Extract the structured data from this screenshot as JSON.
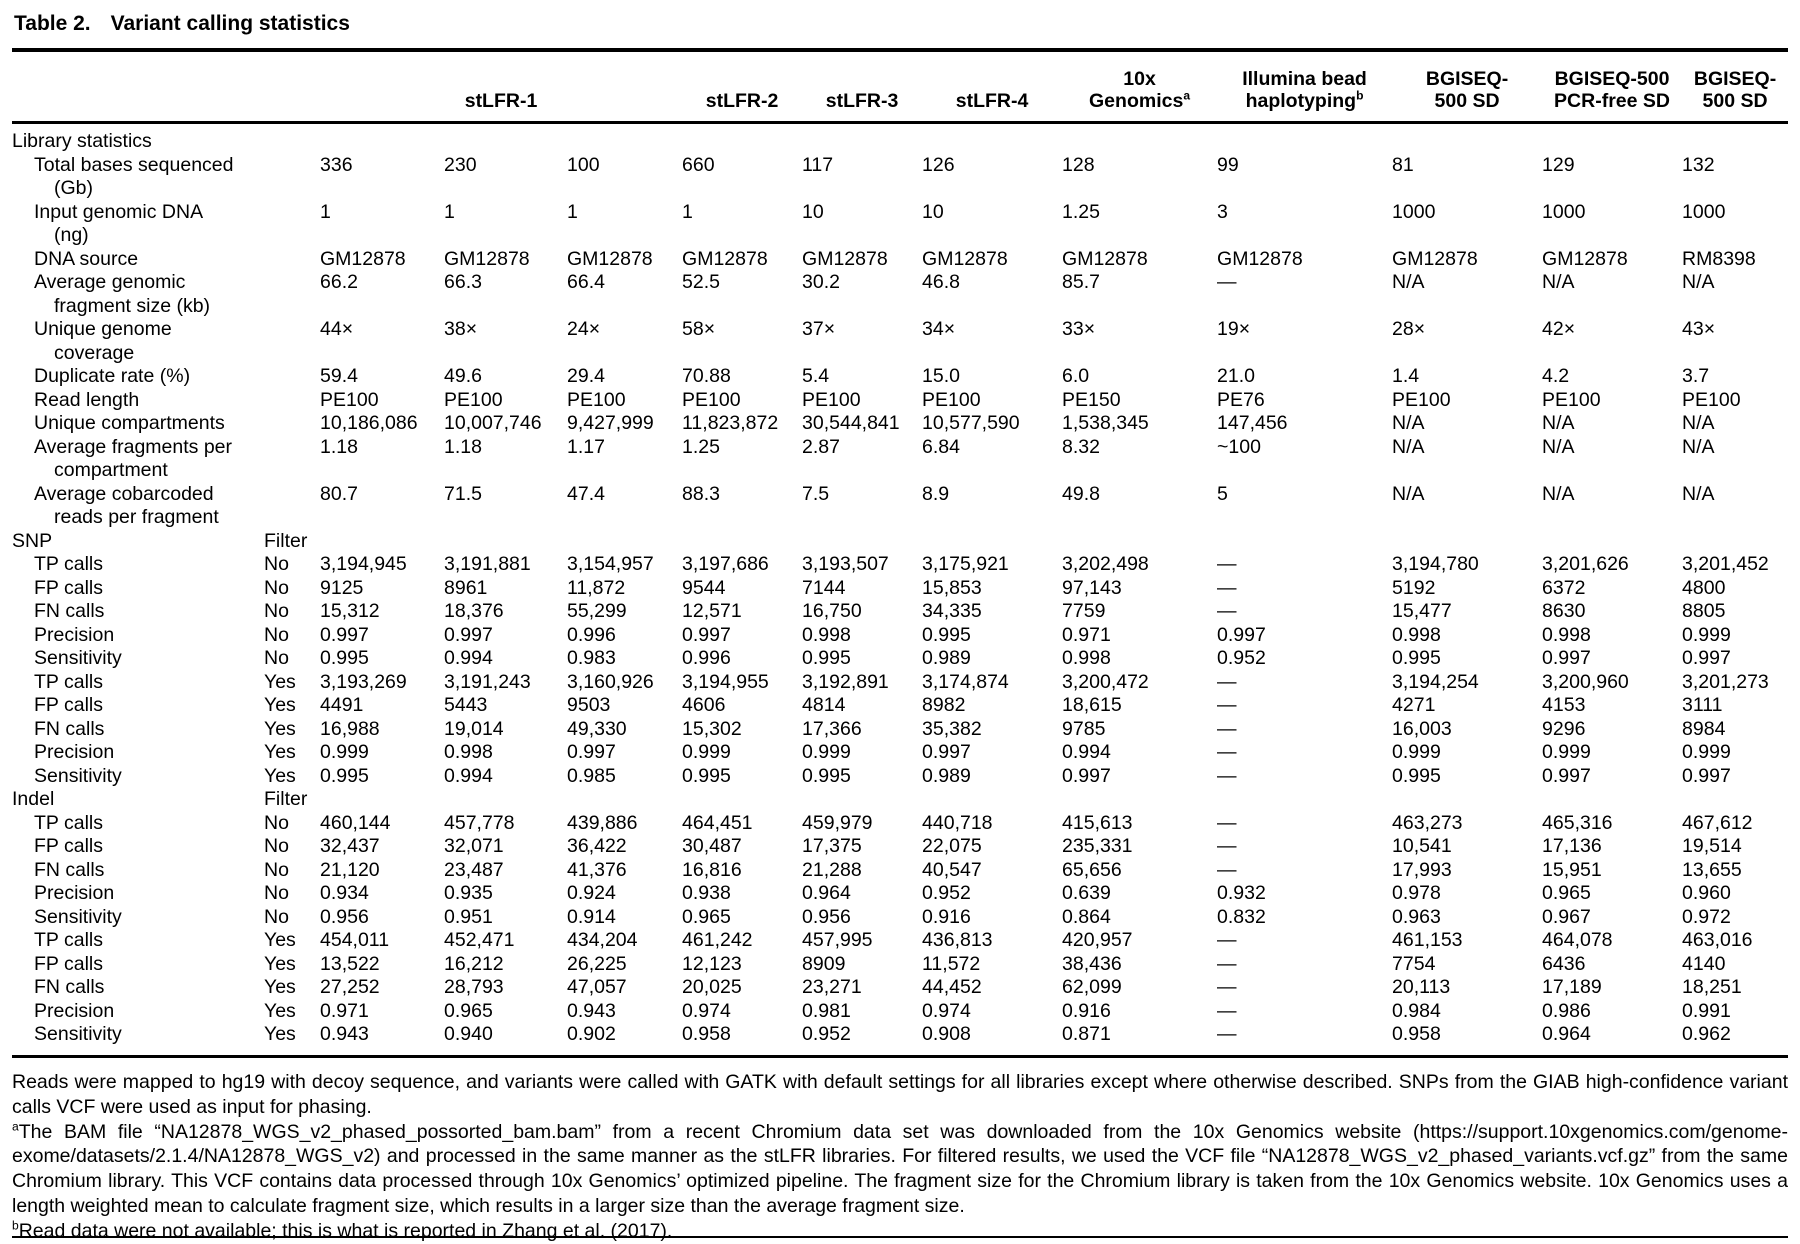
{
  "title": {
    "label": "Table 2.",
    "caption": "Variant calling statistics"
  },
  "header": {
    "stlfr1": "stLFR-1",
    "stlfr2": "stLFR-2",
    "stlfr3": "stLFR-3",
    "stlfr4": "stLFR-4",
    "tenx_line1": "10x",
    "tenx_line2": "Genomics",
    "tenx_sup": "a",
    "illumina_line1": "Illumina bead",
    "illumina_line2": "haplotyping",
    "illumina_sup": "b",
    "bgiseq1_line1": "BGISEQ-",
    "bgiseq1_line2": "500 SD",
    "bgiseq2_line1": "BGISEQ-500",
    "bgiseq2_line2": "PCR-free SD",
    "bgiseq3_line1": "BGISEQ-",
    "bgiseq3_line2": "500 SD"
  },
  "rows": [
    {
      "label": "Library statistics",
      "section": true,
      "filter": "",
      "values": [
        "",
        "",
        "",
        "",
        "",
        "",
        "",
        "",
        "",
        "",
        ""
      ]
    },
    {
      "label": "Total bases sequenced",
      "label2": "(Gb)",
      "filter": "",
      "values": [
        "336",
        "230",
        "100",
        "660",
        "117",
        "126",
        "128",
        "99",
        "81",
        "129",
        "132"
      ]
    },
    {
      "label": "Input genomic DNA",
      "label2": "(ng)",
      "filter": "",
      "values": [
        "1",
        "1",
        "1",
        "1",
        "10",
        "10",
        "1.25",
        "3",
        "1000",
        "1000",
        "1000"
      ]
    },
    {
      "label": "DNA source",
      "filter": "",
      "values": [
        "GM12878",
        "GM12878",
        "GM12878",
        "GM12878",
        "GM12878",
        "GM12878",
        "GM12878",
        "GM12878",
        "GM12878",
        "GM12878",
        "RM8398"
      ]
    },
    {
      "label": "Average genomic",
      "label2": "fragment size (kb)",
      "filter": "",
      "values": [
        "66.2",
        "66.3",
        "66.4",
        "52.5",
        "30.2",
        "46.8",
        "85.7",
        "—",
        "N/A",
        "N/A",
        "N/A"
      ]
    },
    {
      "label": "Unique genome",
      "label2": "coverage",
      "filter": "",
      "values": [
        "44×",
        "38×",
        "24×",
        "58×",
        "37×",
        "34×",
        "33×",
        "19×",
        "28×",
        "42×",
        "43×"
      ]
    },
    {
      "label": "Duplicate rate (%)",
      "filter": "",
      "values": [
        "59.4",
        "49.6",
        "29.4",
        "70.88",
        "5.4",
        "15.0",
        "6.0",
        "21.0",
        "1.4",
        "4.2",
        "3.7"
      ]
    },
    {
      "label": "Read length",
      "filter": "",
      "values": [
        "PE100",
        "PE100",
        "PE100",
        "PE100",
        "PE100",
        "PE100",
        "PE150",
        "PE76",
        "PE100",
        "PE100",
        "PE100"
      ]
    },
    {
      "label": "Unique compartments",
      "filter": "",
      "values": [
        "10,186,086",
        "10,007,746",
        "9,427,999",
        "11,823,872",
        "30,544,841",
        "10,577,590",
        "1,538,345",
        "147,456",
        "N/A",
        "N/A",
        "N/A"
      ]
    },
    {
      "label": "Average fragments per",
      "label2": "compartment",
      "filter": "",
      "values": [
        "1.18",
        "1.18",
        "1.17",
        "1.25",
        "2.87",
        "6.84",
        "8.32",
        "~100",
        "N/A",
        "N/A",
        "N/A"
      ]
    },
    {
      "label": "Average cobarcoded",
      "label2": "reads per fragment",
      "filter": "",
      "values": [
        "80.7",
        "71.5",
        "47.4",
        "88.3",
        "7.5",
        "8.9",
        "49.8",
        "5",
        "N/A",
        "N/A",
        "N/A"
      ]
    },
    {
      "label": "SNP",
      "section": true,
      "filter": "Filter",
      "values": [
        "",
        "",
        "",
        "",
        "",
        "",
        "",
        "",
        "",
        "",
        ""
      ]
    },
    {
      "label": "TP calls",
      "filter": "No",
      "values": [
        "3,194,945",
        "3,191,881",
        "3,154,957",
        "3,197,686",
        "3,193,507",
        "3,175,921",
        "3,202,498",
        "—",
        "3,194,780",
        "3,201,626",
        "3,201,452"
      ]
    },
    {
      "label": "FP calls",
      "filter": "No",
      "values": [
        "9125",
        "8961",
        "11,872",
        "9544",
        "7144",
        "15,853",
        "97,143",
        "—",
        "5192",
        "6372",
        "4800"
      ]
    },
    {
      "label": "FN calls",
      "filter": "No",
      "values": [
        "15,312",
        "18,376",
        "55,299",
        "12,571",
        "16,750",
        "34,335",
        "7759",
        "—",
        "15,477",
        "8630",
        "8805"
      ]
    },
    {
      "label": "Precision",
      "filter": "No",
      "values": [
        "0.997",
        "0.997",
        "0.996",
        "0.997",
        "0.998",
        "0.995",
        "0.971",
        "0.997",
        "0.998",
        "0.998",
        "0.999"
      ]
    },
    {
      "label": "Sensitivity",
      "filter": "No",
      "values": [
        "0.995",
        "0.994",
        "0.983",
        "0.996",
        "0.995",
        "0.989",
        "0.998",
        "0.952",
        "0.995",
        "0.997",
        "0.997"
      ]
    },
    {
      "label": "TP calls",
      "filter": "Yes",
      "values": [
        "3,193,269",
        "3,191,243",
        "3,160,926",
        "3,194,955",
        "3,192,891",
        "3,174,874",
        "3,200,472",
        "—",
        "3,194,254",
        "3,200,960",
        "3,201,273"
      ]
    },
    {
      "label": "FP calls",
      "filter": "Yes",
      "values": [
        "4491",
        "5443",
        "9503",
        "4606",
        "4814",
        "8982",
        "18,615",
        "—",
        "4271",
        "4153",
        "3111"
      ]
    },
    {
      "label": "FN calls",
      "filter": "Yes",
      "values": [
        "16,988",
        "19,014",
        "49,330",
        "15,302",
        "17,366",
        "35,382",
        "9785",
        "—",
        "16,003",
        "9296",
        "8984"
      ]
    },
    {
      "label": "Precision",
      "filter": "Yes",
      "values": [
        "0.999",
        "0.998",
        "0.997",
        "0.999",
        "0.999",
        "0.997",
        "0.994",
        "—",
        "0.999",
        "0.999",
        "0.999"
      ]
    },
    {
      "label": "Sensitivity",
      "filter": "Yes",
      "values": [
        "0.995",
        "0.994",
        "0.985",
        "0.995",
        "0.995",
        "0.989",
        "0.997",
        "—",
        "0.995",
        "0.997",
        "0.997"
      ]
    },
    {
      "label": "Indel",
      "section": true,
      "filter": "Filter",
      "values": [
        "",
        "",
        "",
        "",
        "",
        "",
        "",
        "",
        "",
        "",
        ""
      ]
    },
    {
      "label": "TP calls",
      "filter": "No",
      "values": [
        "460,144",
        "457,778",
        "439,886",
        "464,451",
        "459,979",
        "440,718",
        "415,613",
        "—",
        "463,273",
        "465,316",
        "467,612"
      ]
    },
    {
      "label": "FP calls",
      "filter": "No",
      "values": [
        "32,437",
        "32,071",
        "36,422",
        "30,487",
        "17,375",
        "22,075",
        "235,331",
        "—",
        "10,541",
        "17,136",
        "19,514"
      ]
    },
    {
      "label": "FN calls",
      "filter": "No",
      "values": [
        "21,120",
        "23,487",
        "41,376",
        "16,816",
        "21,288",
        "40,547",
        "65,656",
        "—",
        "17,993",
        "15,951",
        "13,655"
      ]
    },
    {
      "label": "Precision",
      "filter": "No",
      "values": [
        "0.934",
        "0.935",
        "0.924",
        "0.938",
        "0.964",
        "0.952",
        "0.639",
        "0.932",
        "0.978",
        "0.965",
        "0.960"
      ]
    },
    {
      "label": "Sensitivity",
      "filter": "No",
      "values": [
        "0.956",
        "0.951",
        "0.914",
        "0.965",
        "0.956",
        "0.916",
        "0.864",
        "0.832",
        "0.963",
        "0.967",
        "0.972"
      ]
    },
    {
      "label": "TP calls",
      "filter": "Yes",
      "values": [
        "454,011",
        "452,471",
        "434,204",
        "461,242",
        "457,995",
        "436,813",
        "420,957",
        "—",
        "461,153",
        "464,078",
        "463,016"
      ]
    },
    {
      "label": "FP calls",
      "filter": "Yes",
      "values": [
        "13,522",
        "16,212",
        "26,225",
        "12,123",
        "8909",
        "11,572",
        "38,436",
        "—",
        "7754",
        "6436",
        "4140"
      ]
    },
    {
      "label": "FN calls",
      "filter": "Yes",
      "values": [
        "27,252",
        "28,793",
        "47,057",
        "20,025",
        "23,271",
        "44,452",
        "62,099",
        "—",
        "20,113",
        "17,189",
        "18,251"
      ]
    },
    {
      "label": "Precision",
      "filter": "Yes",
      "values": [
        "0.971",
        "0.965",
        "0.943",
        "0.974",
        "0.981",
        "0.974",
        "0.916",
        "—",
        "0.984",
        "0.986",
        "0.991"
      ]
    },
    {
      "label": "Sensitivity",
      "filter": "Yes",
      "values": [
        "0.943",
        "0.940",
        "0.902",
        "0.958",
        "0.952",
        "0.908",
        "0.871",
        "—",
        "0.958",
        "0.964",
        "0.962"
      ]
    }
  ],
  "footnotes": {
    "general": "Reads were mapped to hg19 with decoy sequence, and variants were called with GATK with default settings for all libraries except where otherwise described. SNPs from the GIAB high-confidence variant calls VCF were used as input for phasing.",
    "a_sup": "a",
    "a_text": "The BAM file “NA12878_WGS_v2_phased_possorted_bam.bam” from a recent Chromium data set was downloaded from the 10x Genomics website (https://support.10xgenomics.com/genome-exome/datasets/2.1.4/NA12878_WGS_v2) and processed in the same manner as the stLFR libraries. For filtered results, we used the VCF file “NA12878_WGS_v2_phased_variants.vcf.gz” from the same Chromium library. This VCF contains data processed through 10x Genomics’ optimized pipeline. The fragment size for the Chromium library is taken from the 10x Genomics website. 10x Genomics uses a length weighted mean to calculate fragment size, which results in a larger size than the average fragment size.",
    "b_sup": "b",
    "b_text": "Read data were not available; this is what is reported in Zhang et al. (2017)."
  }
}
